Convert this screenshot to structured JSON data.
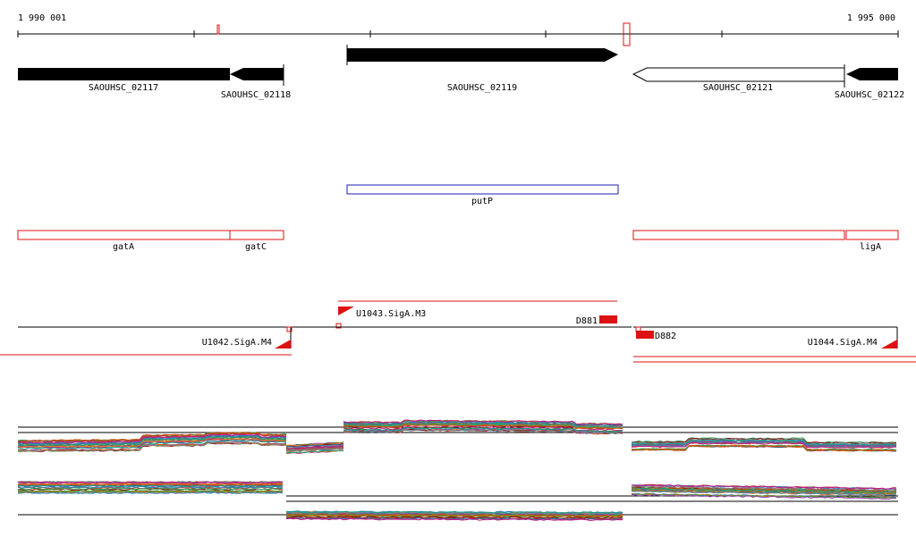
{
  "axis": {
    "start_label": "1 990 001",
    "end_label": "1 995 000"
  },
  "genes": [
    {
      "name": "SAOUHSC_02117",
      "strand": "forward"
    },
    {
      "name": "SAOUHSC_02118",
      "strand": "reverse"
    },
    {
      "name": "SAOUHSC_02119",
      "strand": "forward"
    },
    {
      "name": "SAOUHSC_02121",
      "strand": "reverse"
    },
    {
      "name": "SAOUHSC_02122",
      "strand": "reverse"
    }
  ],
  "features_blue": [
    {
      "name": "putP"
    }
  ],
  "features_red": [
    {
      "name": "gatA"
    },
    {
      "name": "gatC"
    },
    {
      "name": ""
    },
    {
      "name": "ligA"
    }
  ],
  "promoters": {
    "m3": "U1043.SigA.M3",
    "m4_left": "U1042.SigA.M4",
    "m4_right": "U1044.SigA.M4",
    "d881": "D881",
    "d882": "D882"
  },
  "colors": {
    "gene_fill": "#000000",
    "gene_hollow": "#ffffff",
    "blue_feature": "#1f1fb4",
    "red_feature": "#dd1111",
    "axis": "#000000"
  }
}
